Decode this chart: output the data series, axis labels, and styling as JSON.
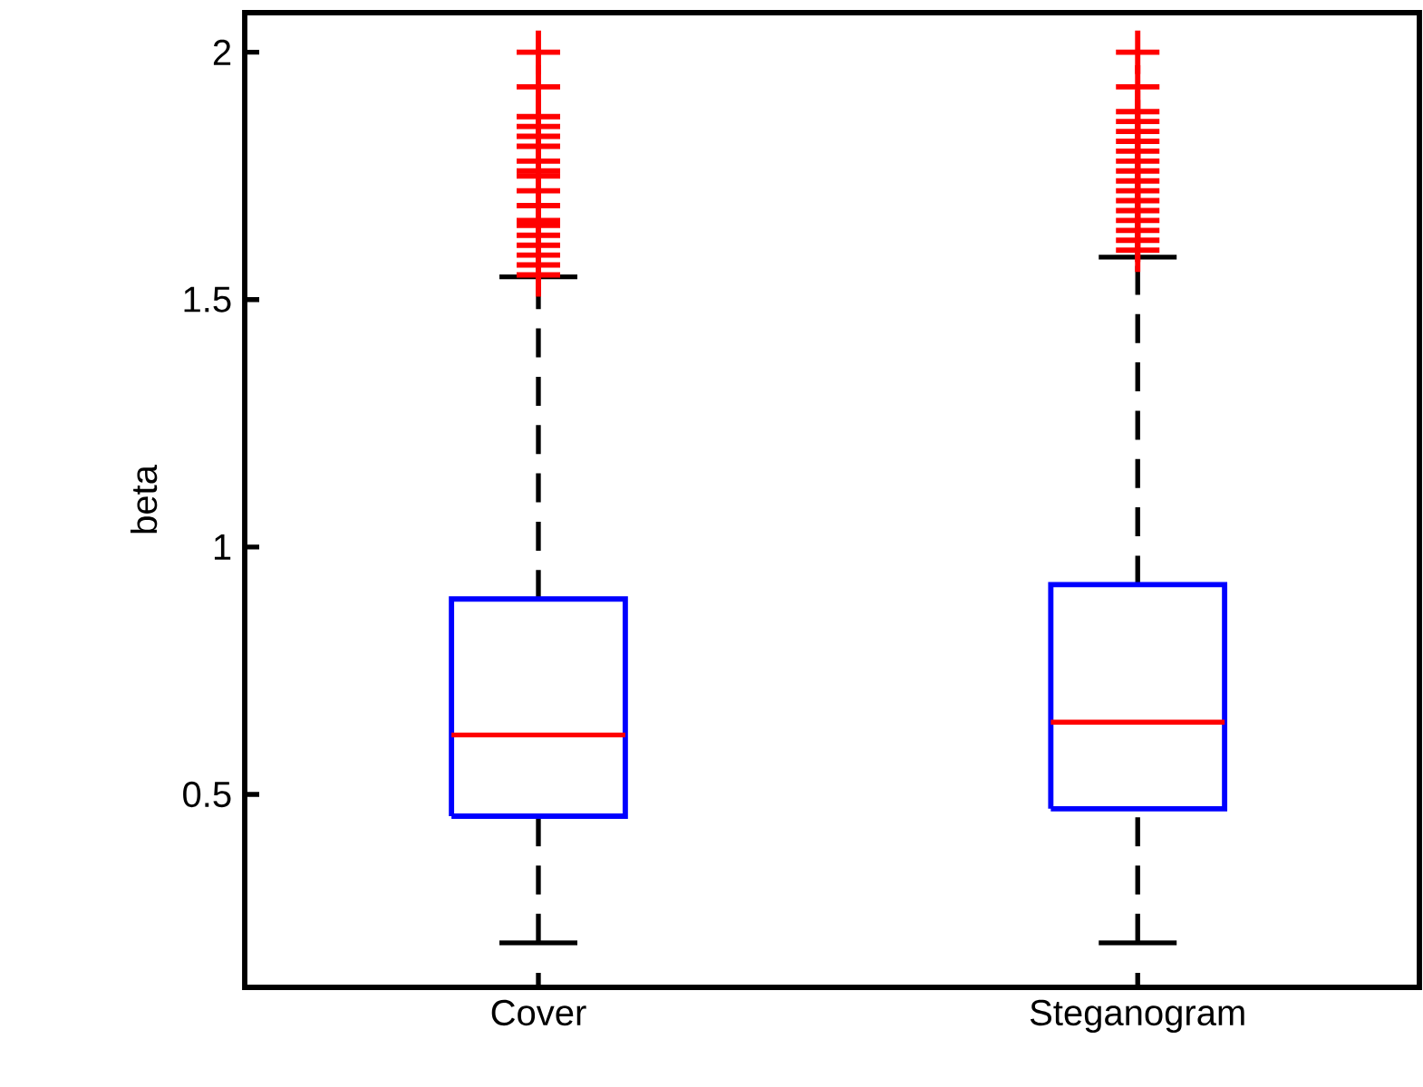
{
  "chart_data": {
    "type": "box",
    "ylabel": "beta",
    "categories": [
      "Cover",
      "Steganogram"
    ],
    "color": "#0000ff",
    "marker": "cross",
    "ylim": [
      0.11,
      2.08
    ],
    "yticks": [
      0.5,
      1,
      1.5,
      2
    ],
    "boxes": [
      {
        "low": 0.2,
        "q1": 0.456,
        "median": 0.62,
        "q3": 0.895,
        "high": 1.546,
        "outliers": [
          2.0,
          1.93,
          1.87,
          1.85,
          1.83,
          1.81,
          1.78,
          1.76,
          1.75,
          1.72,
          1.69,
          1.66,
          1.65,
          1.63,
          1.61,
          1.59,
          1.57,
          1.55
        ]
      },
      {
        "low": 0.2,
        "q1": 0.471,
        "median": 0.646,
        "q3": 0.924,
        "high": 1.586,
        "outliers": [
          2.0,
          1.93,
          1.88,
          1.86,
          1.84,
          1.82,
          1.8,
          1.78,
          1.76,
          1.74,
          1.72,
          1.7,
          1.68,
          1.66,
          1.64,
          1.62,
          1.6
        ]
      }
    ]
  }
}
